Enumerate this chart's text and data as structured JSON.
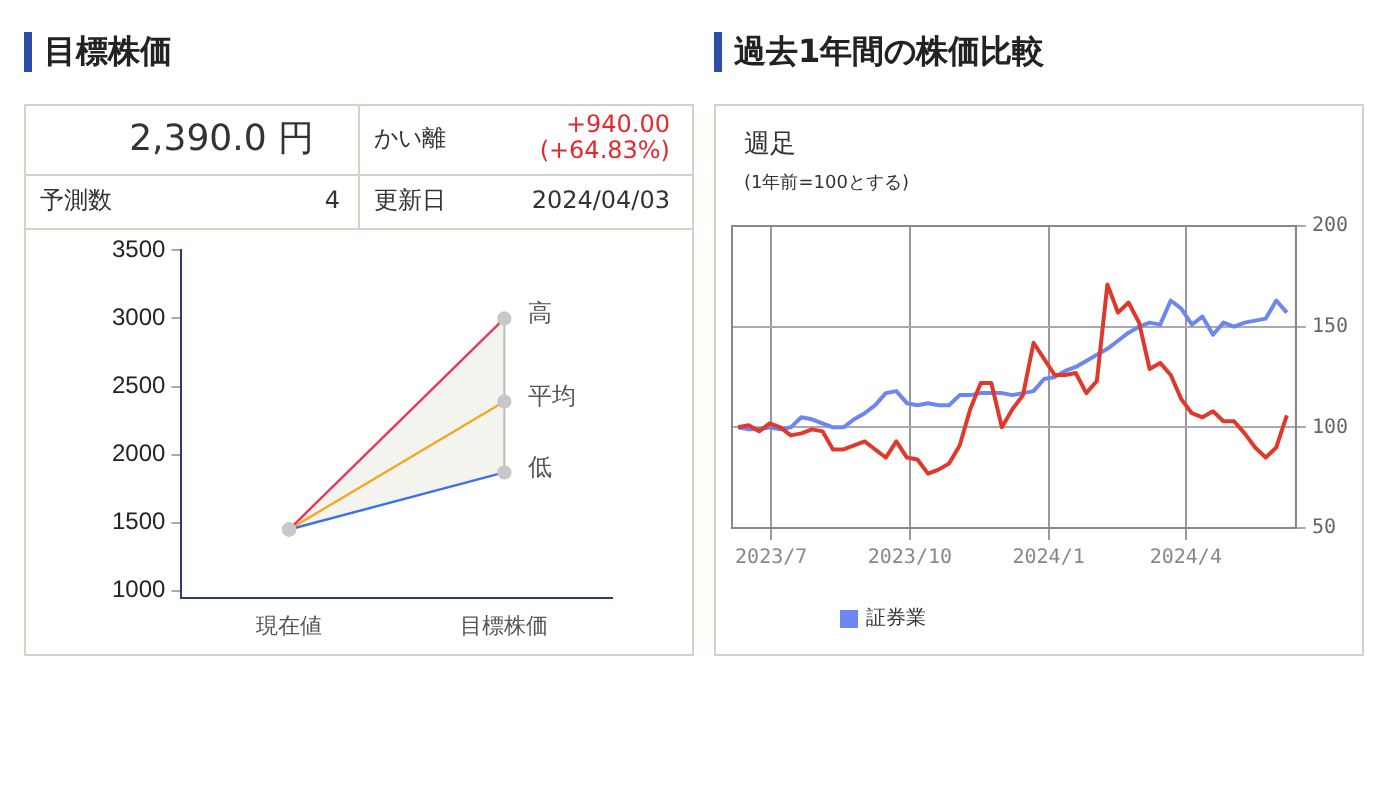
{
  "chart_data": [
    {
      "type": "line",
      "title": "目標株価",
      "annotations": [
        "2,390.0 円",
        "かい離",
        "+940.00\n(+64.83%)",
        "予測数",
        "4",
        "更新日",
        "2024/04/03"
      ],
      "categories": [
        "現在値",
        "目標株価"
      ],
      "series": [
        {
          "name": "高",
          "color": "#e8375a",
          "values": [
            1450,
            3000
          ]
        },
        {
          "name": "平均",
          "color": "#f5a623",
          "values": [
            1450,
            2390
          ],
          "lower": [
            1450,
            1870
          ],
          "upper": [
            1450,
            3000
          ]
        },
        {
          "name": "低",
          "color": "#3a6ff0",
          "values": [
            1450,
            1870
          ]
        }
      ],
      "ylim": [
        950,
        3500
      ],
      "yticks": [
        1000,
        1500,
        2000,
        2500,
        3000,
        3500
      ],
      "grid": false,
      "legend": false,
      "marker": "circle"
    },
    {
      "type": "line",
      "title": "過去1年間の株価比較",
      "subtitle": "週足",
      "annotations": [
        "(1年前=100とする)"
      ],
      "x": [
        "2023-06-09",
        "2023-06-16",
        "2023-06-23",
        "2023-06-30",
        "2023-07-07",
        "2023-07-14",
        "2023-07-21",
        "2023-07-28",
        "2023-08-04",
        "2023-08-11",
        "2023-08-18",
        "2023-08-25",
        "2023-09-01",
        "2023-09-08",
        "2023-09-15",
        "2023-09-22",
        "2023-09-29",
        "2023-10-06",
        "2023-10-13",
        "2023-10-20",
        "2023-10-27",
        "2023-11-03",
        "2023-11-10",
        "2023-11-17",
        "2023-11-24",
        "2023-12-01",
        "2023-12-08",
        "2023-12-15",
        "2023-12-22",
        "2023-12-29",
        "2024-01-05",
        "2024-01-12",
        "2024-01-19",
        "2024-01-26",
        "2024-02-02",
        "2024-02-09",
        "2024-02-16",
        "2024-02-23",
        "2024-03-01",
        "2024-03-08",
        "2024-03-15",
        "2024-03-22",
        "2024-03-29",
        "2024-04-05",
        "2024-04-12",
        "2024-04-19",
        "2024-04-26",
        "2024-05-03",
        "2024-05-10",
        "2024-05-17",
        "2024-05-24",
        "2024-05-31",
        "2024-06-07"
      ],
      "series": [
        {
          "color": "#e0392b",
          "values": [
            100,
            101,
            98,
            102,
            100,
            96,
            97,
            99,
            98,
            89,
            89,
            91,
            93,
            89,
            85,
            93,
            85,
            84,
            77,
            79,
            82,
            91,
            109,
            122,
            122,
            100,
            109,
            116,
            142,
            134,
            126,
            126,
            127,
            117,
            123,
            171,
            157,
            162,
            152,
            129,
            132,
            126,
            114,
            107,
            105,
            108,
            103,
            103,
            97,
            90,
            85,
            90,
            106
          ]
        },
        {
          "name": "証券業",
          "color": "#6e86f0",
          "values": [
            100,
            99,
            99,
            100,
            99,
            100,
            105,
            104,
            102,
            100,
            100,
            104,
            107,
            111,
            117,
            118,
            112,
            111,
            112,
            111,
            111,
            116,
            116,
            117,
            117,
            117,
            116,
            117,
            118,
            124,
            125,
            128,
            130,
            133,
            136,
            139,
            143,
            147,
            150,
            152,
            151,
            163,
            159,
            151,
            155,
            146,
            152,
            150,
            152,
            153,
            154,
            163,
            157
          ]
        }
      ],
      "xlim": [
        "2023-06-05",
        "2024-06-13"
      ],
      "xticks": [
        {
          "value": "2023-07-01",
          "label": "2023/7"
        },
        {
          "value": "2023-10-01",
          "label": "2023/10"
        },
        {
          "value": "2024-01-01",
          "label": "2024/1"
        },
        {
          "value": "2024-04-01",
          "label": "2024/4"
        }
      ],
      "ylim": [
        50,
        200
      ],
      "yticks": [
        50,
        100,
        150,
        200
      ],
      "grid": true,
      "legend": "bottom",
      "marker": "none",
      "line_style": "solid"
    }
  ]
}
